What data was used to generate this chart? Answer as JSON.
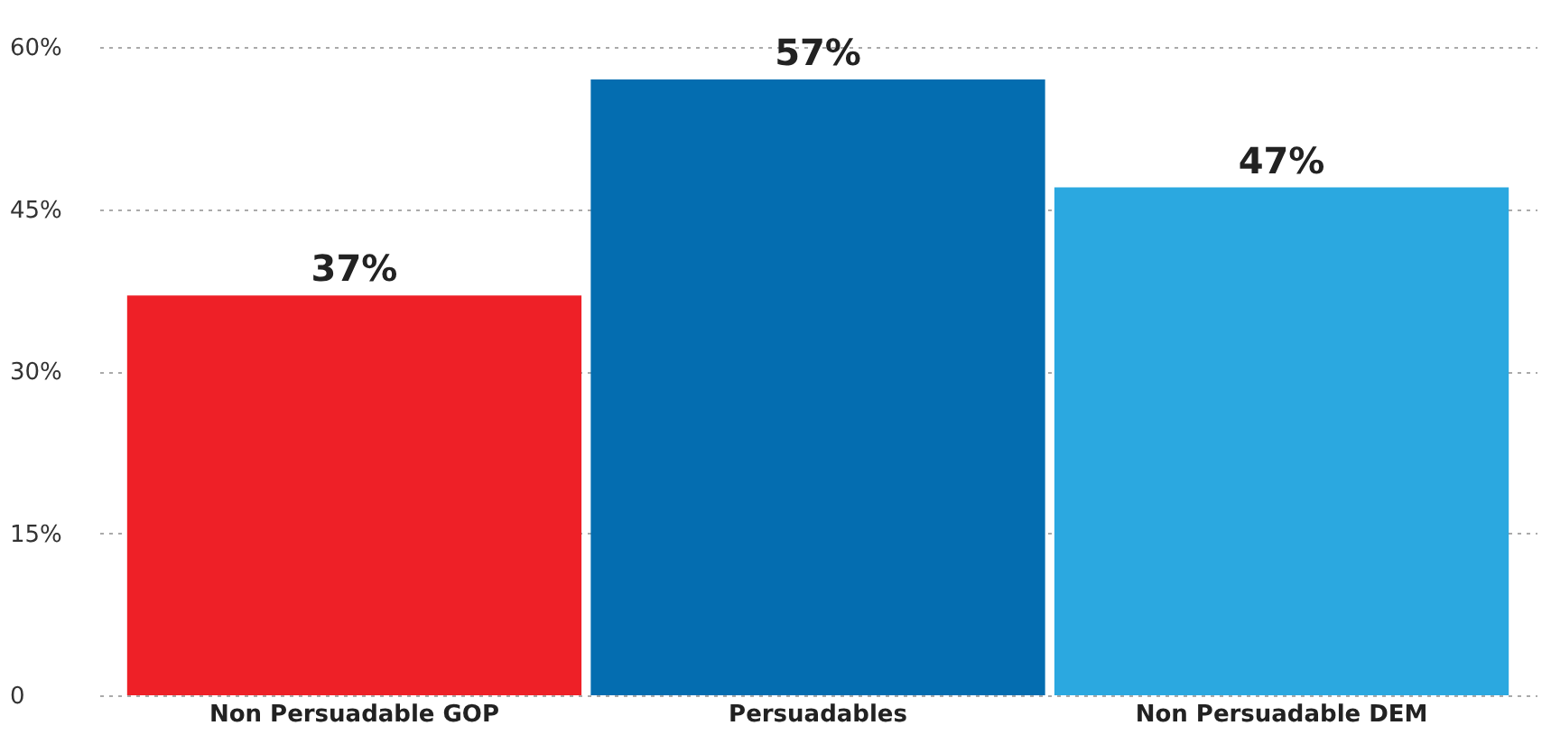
{
  "chart_data": {
    "type": "bar",
    "categories": [
      "Non Persuadable GOP",
      "Persuadables",
      "Non Persuadable DEM"
    ],
    "values": [
      37,
      57,
      47
    ],
    "colors": [
      "#ee2027",
      "#046db0",
      "#2ba8e0"
    ],
    "value_labels": [
      "37%",
      "57%",
      "47%"
    ],
    "ylim": [
      0,
      60
    ],
    "yticks": [
      0,
      {
        "value": 15,
        "label": "15%"
      },
      {
        "value": 30,
        "label": "30%"
      },
      {
        "value": 45,
        "label": "45%"
      },
      {
        "value": 60,
        "label": "60%"
      }
    ],
    "grid": "y"
  }
}
